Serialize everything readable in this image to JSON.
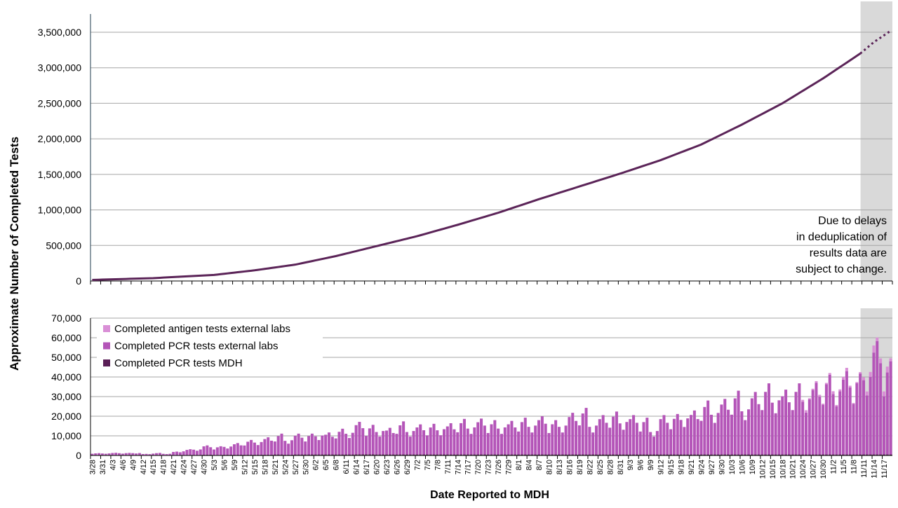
{
  "ylabel": "Approximate Number of Completed Tests",
  "xlabel": "Date Reported to MDH",
  "annotation": [
    "Due to delays",
    "in deduplication of",
    "results data are",
    "subject to change."
  ],
  "colors": {
    "cumulative_line": "#5b2458",
    "antigen": "#d98fd6",
    "pcr_external": "#b455b8",
    "pcr_mdh": "#5a1f57",
    "shade": "#d9d9d9",
    "grid": "#a6a6a6"
  },
  "chart_data": [
    {
      "type": "line",
      "ylim": [
        0,
        3500000
      ],
      "yticks": [
        "0",
        "500,000",
        "1,000,000",
        "1,500,000",
        "2,000,000",
        "2,500,000",
        "3,000,000",
        "3,500,000"
      ],
      "grid": true,
      "shaded_region": [
        "11/11",
        "11/19"
      ],
      "series": [
        {
          "points": [
            [
              "3/28",
              15000
            ],
            [
              "4/15",
              40000
            ],
            [
              "5/3",
              85000
            ],
            [
              "5/15",
              150000
            ],
            [
              "5/27",
              230000
            ],
            [
              "6/8",
              350000
            ],
            [
              "6/20",
              490000
            ],
            [
              "7/2",
              630000
            ],
            [
              "7/14",
              790000
            ],
            [
              "7/26",
              960000
            ],
            [
              "8/7",
              1150000
            ],
            [
              "8/19",
              1330000
            ],
            [
              "8/31",
              1510000
            ],
            [
              "9/12",
              1700000
            ],
            [
              "9/24",
              1920000
            ],
            [
              "10/6",
              2200000
            ],
            [
              "10/18",
              2500000
            ],
            [
              "10/30",
              2850000
            ],
            [
              "11/10",
              3200000
            ]
          ]
        },
        {
          "style": "dotted",
          "points": [
            [
              "11/10",
              3200000
            ],
            [
              "11/14",
              3360000
            ],
            [
              "11/19",
              3520000
            ]
          ]
        }
      ]
    },
    {
      "type": "bar",
      "stacked": true,
      "ylim": [
        0,
        70000
      ],
      "yticks": [
        "0",
        "10,000",
        "20,000",
        "30,000",
        "40,000",
        "50,000",
        "60,000",
        "70,000"
      ],
      "grid": true,
      "legend_position": "top-left",
      "shaded_region": [
        "11/11",
        "11/19"
      ],
      "x_tick_labels": [
        "3/28",
        "3/31",
        "4/3",
        "4/6",
        "4/9",
        "4/12",
        "4/15",
        "4/18",
        "4/21",
        "4/24",
        "4/27",
        "4/30",
        "5/3",
        "5/6",
        "5/9",
        "5/12",
        "5/15",
        "5/18",
        "5/21",
        "5/24",
        "5/27",
        "5/30",
        "6/2",
        "6/5",
        "6/8",
        "6/11",
        "6/14",
        "6/17",
        "6/20",
        "6/23",
        "6/26",
        "6/29",
        "7/2",
        "7/5",
        "7/8",
        "7/11",
        "7/14",
        "7/17",
        "7/20",
        "7/23",
        "7/26",
        "7/29",
        "8/1",
        "8/4",
        "8/7",
        "8/10",
        "8/13",
        "8/16",
        "8/19",
        "8/22",
        "8/25",
        "8/28",
        "8/31",
        "9/3",
        "9/6",
        "9/9",
        "9/12",
        "9/15",
        "9/18",
        "9/21",
        "9/24",
        "9/27",
        "9/30",
        "10/3",
        "10/6",
        "10/9",
        "10/12",
        "10/15",
        "10/18",
        "10/21",
        "10/24",
        "10/27",
        "10/30",
        "11/2",
        "11/5",
        "11/8",
        "11/11",
        "11/14",
        "11/17"
      ],
      "series": [
        {
          "name": "Completed antigen tests external labs",
          "values": [
            0,
            0,
            0,
            0,
            0,
            0,
            0,
            0,
            0,
            0,
            0,
            0,
            0,
            0,
            0,
            0,
            0,
            0,
            0,
            0,
            0,
            0,
            0,
            0,
            0,
            0,
            0,
            0,
            0,
            0,
            0,
            0,
            0,
            0,
            0,
            0,
            0,
            0,
            0,
            0,
            0,
            0,
            0,
            0,
            0,
            0,
            0,
            0,
            0,
            0,
            0,
            0,
            0,
            0,
            0,
            0,
            0,
            0,
            0,
            0,
            0,
            0,
            0,
            0,
            0,
            0,
            0,
            0,
            0,
            0,
            1000,
            800,
            900,
            1200,
            1400,
            600,
            2500,
            3000,
            2500
          ]
        },
        {
          "name": "Completed PCR tests external labs",
          "values": [
            700,
            800,
            900,
            800,
            1000,
            500,
            800,
            700,
            1400,
            2300,
            3000,
            4000,
            3500,
            4500,
            5000,
            6000,
            7000,
            7500,
            8500,
            8000,
            9000,
            8500,
            10500,
            9500,
            10500,
            12000,
            14000,
            12000,
            13000,
            11500,
            13500,
            13000,
            13000,
            12500,
            14000,
            13500,
            14500,
            15000,
            15500,
            14000,
            15000,
            14500,
            15000,
            16000,
            16500,
            14000,
            16000,
            18000,
            19000,
            16000,
            17000,
            17500,
            18000,
            17000,
            15000,
            13000,
            17000,
            16500,
            20000,
            19000,
            22000,
            23000,
            24000,
            26000,
            25000,
            27000,
            29000,
            30000,
            28000,
            29000,
            30500,
            31000,
            32500,
            35000,
            36000,
            33000,
            43000,
            49000,
            38000
          ]
        },
        {
          "name": "Completed PCR tests MDH",
          "values": [
            300,
            300,
            300,
            300,
            300,
            200,
            300,
            200,
            300,
            300,
            300,
            400,
            300,
            400,
            400,
            400,
            400,
            400,
            500,
            400,
            500,
            500,
            500,
            500,
            500,
            500,
            600,
            600,
            500,
            500,
            500,
            500,
            500,
            500,
            500,
            500,
            500,
            500,
            500,
            500,
            500,
            500,
            500,
            500,
            500,
            500,
            500,
            500,
            500,
            500,
            500,
            500,
            500,
            500,
            500,
            500,
            500,
            500,
            500,
            500,
            500,
            500,
            500,
            500,
            500,
            500,
            500,
            500,
            500,
            500,
            500,
            500,
            500,
            500,
            500,
            500,
            500,
            500,
            500
          ]
        }
      ]
    }
  ]
}
